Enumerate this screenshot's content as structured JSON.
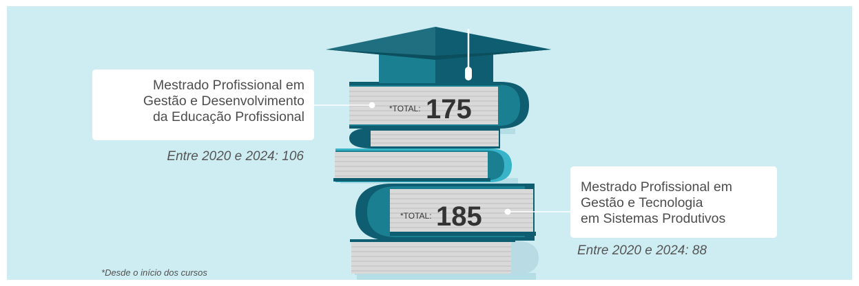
{
  "books": [
    {
      "program": [
        "Mestrado Profissional em",
        "Gestão e Desenvolvimento",
        "da Educação Profissional"
      ],
      "total_label": "*TOTAL:",
      "total": "175",
      "period_note": "Entre 2020 e 2024: 106"
    },
    {
      "program": [
        "Mestrado Profissional em",
        "Gestão e Tecnologia",
        "em Sistemas Produtivos"
      ],
      "total_label": "*TOTAL:",
      "total": "185",
      "period_note": "Entre 2020 e 2024: 88"
    }
  ],
  "footnote": {
    "star": "*",
    "text": "Desde o início dos cursos"
  },
  "colors": {
    "background": "#cdedf3",
    "cap": "#1f6f80",
    "book_dark": "#0f5d70",
    "book_teal": "#1b7f92",
    "book_light": "#38b4c8",
    "pages": "#d9d9d9"
  }
}
